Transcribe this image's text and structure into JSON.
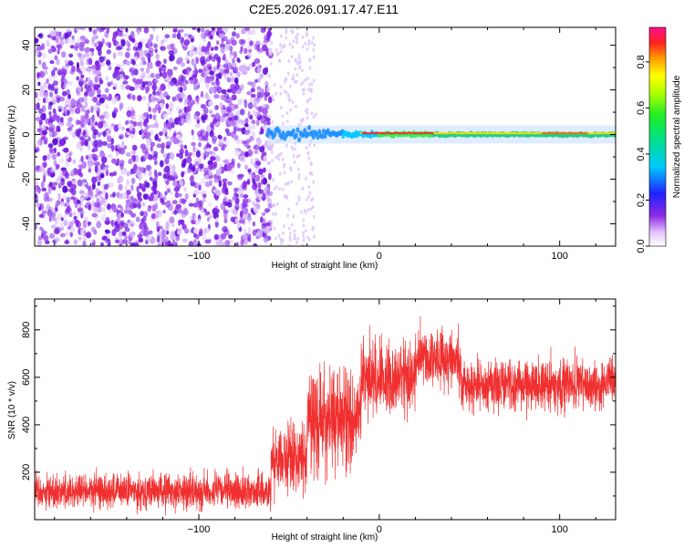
{
  "title": "C2E5.2026.091.17.47.E11",
  "chart_data": [
    {
      "type": "heatmap",
      "name": "spectrogram",
      "title": "C2E5.2026.091.17.47.E11",
      "xlabel": "Height of straight line (km)",
      "ylabel": "Frequency (Hz)",
      "xlim": [
        -191,
        131
      ],
      "ylim": [
        -50,
        48
      ],
      "xticks": [
        -100,
        0,
        100
      ],
      "yticks": [
        -40,
        -20,
        0,
        20,
        40
      ],
      "description_points": {
        "noise_region_x": [
          -191,
          -60
        ],
        "signal_onset_km": -62,
        "signal_band_hz": [
          -4,
          4
        ],
        "scattered_end_km": -35
      },
      "colorbar": {
        "label": "Normalized spectral amplitude",
        "range": [
          0,
          0.95
        ],
        "ticks": [
          0.0,
          0.2,
          0.4,
          0.6,
          0.8
        ],
        "tick_labels": [
          "0.0",
          "0.2",
          "0.4",
          "0.6",
          "0.8"
        ]
      }
    },
    {
      "type": "line",
      "name": "snr",
      "xlabel": "Height of straight line (km)",
      "ylabel": "SNR (10 * v/v)",
      "xlim": [
        -191,
        131
      ],
      "ylim": [
        0,
        930
      ],
      "xticks": [
        -100,
        0,
        100
      ],
      "yticks": [
        200,
        400,
        600,
        800
      ],
      "color": "#f03030",
      "segments": [
        {
          "x": [
            -191,
            -60
          ],
          "mean": 120,
          "spread": 90
        },
        {
          "x": [
            -60,
            -40
          ],
          "mean": 260,
          "spread": 170
        },
        {
          "x": [
            -40,
            -10
          ],
          "mean": 420,
          "spread": 260
        },
        {
          "x": [
            -10,
            20
          ],
          "mean": 600,
          "spread": 190
        },
        {
          "x": [
            20,
            45
          ],
          "mean": 680,
          "spread": 150
        },
        {
          "x": [
            45,
            131
          ],
          "mean": 570,
          "spread": 130
        }
      ]
    }
  ],
  "colors": {
    "noise_purple": "#8a2be2",
    "signal_green": "#33ee33",
    "signal_red": "#ff2020",
    "snr_line": "#f03030"
  }
}
